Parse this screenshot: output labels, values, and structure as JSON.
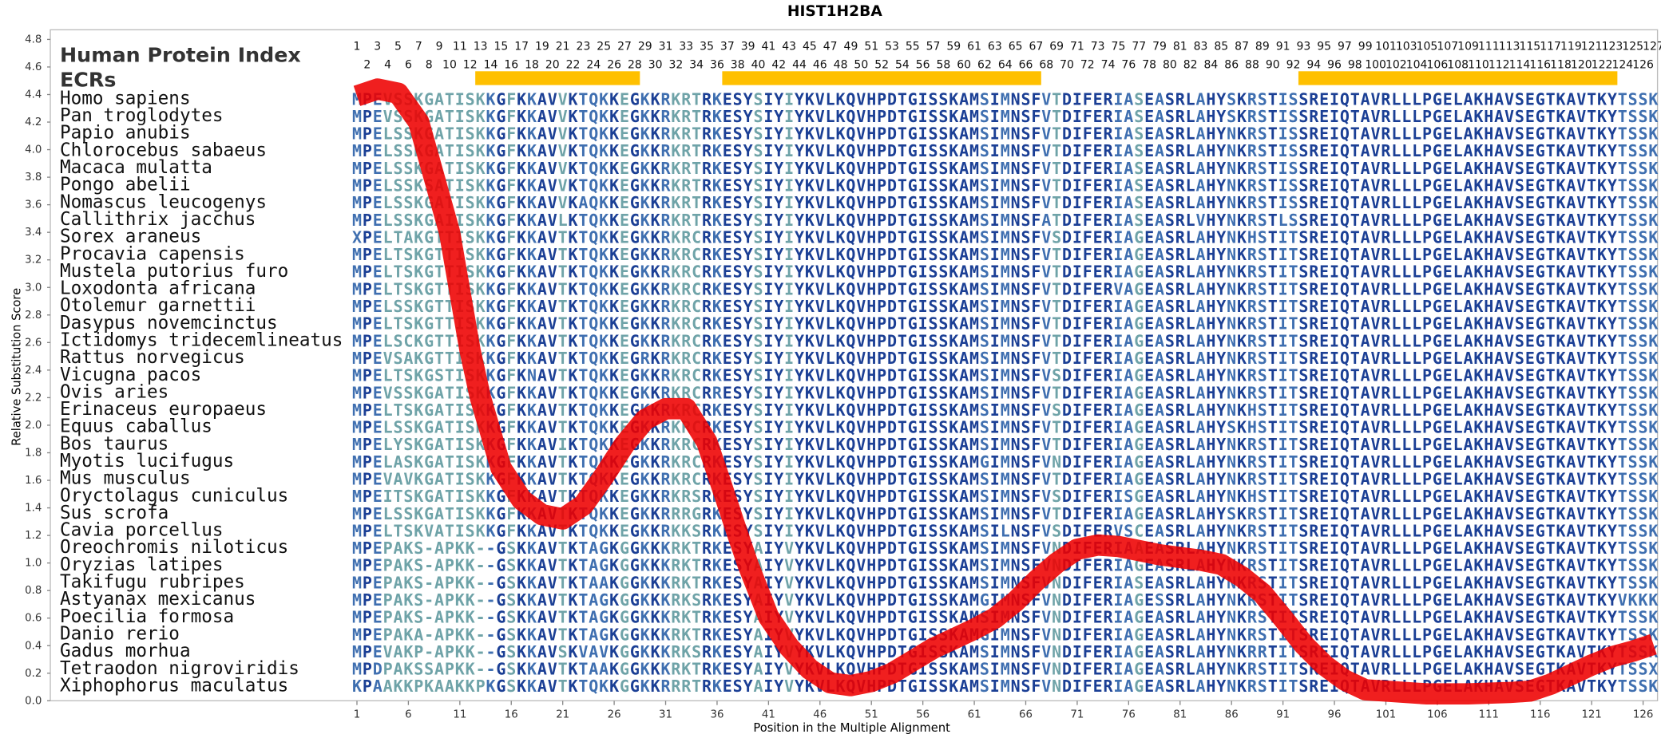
{
  "chart_data": {
    "type": "line",
    "title": "HIST1H2BA",
    "x_label": "Position in the Multiple Alignment",
    "y_label": "Relative Substitution Score",
    "index_label": "Human Protein Index",
    "ecr_label": "ECRs",
    "ecr_color": "#ffc000",
    "ecrs": [
      {
        "start": 13,
        "end": 28
      },
      {
        "start": 37,
        "end": 67
      },
      {
        "start": 93,
        "end": 123
      }
    ],
    "positions": [
      1,
      2,
      3,
      4,
      5,
      6,
      7,
      8,
      9,
      10,
      11,
      12,
      13,
      14,
      15,
      16,
      17,
      18,
      19,
      20,
      21,
      22,
      23,
      24,
      25,
      26,
      27,
      28,
      29,
      30,
      31,
      32,
      33,
      34,
      35,
      36,
      37,
      38,
      39,
      40,
      41,
      42,
      43,
      44,
      45,
      46,
      47,
      48,
      49,
      50,
      51,
      52,
      53,
      54,
      55,
      56,
      57,
      58,
      59,
      60,
      61,
      62,
      63,
      64,
      65,
      66,
      67,
      68,
      69,
      70,
      71,
      72,
      73,
      74,
      75,
      76,
      77,
      78,
      79,
      80,
      81,
      82,
      83,
      84,
      85,
      86,
      87,
      88,
      89,
      90,
      91,
      92,
      93,
      94,
      95,
      96,
      97,
      98,
      99,
      100,
      101,
      102,
      103,
      104,
      105,
      106,
      107,
      108,
      109,
      110,
      111,
      112,
      113,
      114,
      115,
      116,
      117,
      118,
      119,
      120,
      121,
      122,
      123,
      124,
      125,
      126,
      127
    ],
    "rows": [
      {
        "species": "Homo sapiens",
        "sequence": "MPEVSSKGATISKKGFKKAVVKTQKKEGKKRKRTRKESYSIYIYKVLKQVHPDTGISSKAMSIMNSFVTDIFERIASEASRLAHYSKRSTISSREIQTAVRLLLPGELAKHAVSEGTKAVTKYTSSK"
      },
      {
        "species": "Pan troglodytes",
        "sequence": "MPEVSSKGATISKKGFKKAVVKTQKKEGKKRKRTRKESYSIYIYKVLKQVHPDTGISSKAMSIMNSFVTDIFERIASEASRLAHYSKRSTISSREIQTAVRLLLPGELAKHAVSEGTKAVTKYTSSK"
      },
      {
        "species": "Papio anubis",
        "sequence": "MPELSSKGATISKKGFKKAVVKTQKKEGKKRKRTRKESYSIYIYKVLKQVHPDTGISSKAMSIMNSFVTDIFERIASEASRLAHYNKRSTISSREIQTAVRLLLPGELAKHAVSEGTKAVTKYTSSK"
      },
      {
        "species": "Chlorocebus sabaeus",
        "sequence": "MPELSSKGATISKKGFKKAVVKTQKKEGKKRKRTRKESYSIYIYKVLKQVHPDTGISSKAMSIMNSFVTDIFERIASEASRLAHYNKRSTISSREIQTAVRLLLPGELAKHAVSEGTKAVTKYTSSK"
      },
      {
        "species": "Macaca mulatta",
        "sequence": "MPELSSKGATISKKGFKKAVVKTQKKEGKKRKRTRKESYSIYIYKVLKQVHPDTGISSKAMSIMNSFVTDIFERIASEASRLAHYNKRSTISSREIQTAVRLLLPGELAKHAVSEGTKAVTKYTSSK"
      },
      {
        "species": "Pongo abelii",
        "sequence": "MPELSSKSATISKKGFKKAVVKTQKKEGKKRKRTRKESYSIYIYKVLKQVHPDTGISSKAMSIMNSFVTDIFERIASEASRLAHYNKRSTISSREIQTAVRLLLPGELAKHAVSEGTKAVTKYTSSK"
      },
      {
        "species": "Nomascus leucogenys",
        "sequence": "MPELSSKGATISKKGFKKAVVKAQKKEGKKRKRTRKESYSIYIYKVLKQVHPDTGISSKAMSIMNSFVTDIFERIASEASRLAHYNKRSTISSREIQTAVRLLLPGELAKHAVSEGTKAVTKYTSSK"
      },
      {
        "species": "Callithrix jacchus",
        "sequence": "MPELSSKGAIISKKGFKKAVLKTQKKEGKKRKRTRKESYSIYIYKVLKQVHPDTGISSKAMSIMNSFATDIFERIASEASRLVHYNKRSTLSSREIQTAVRLLLPGELAKHAVSEGTKAVTKYTSSK"
      },
      {
        "species": "Sorex araneus",
        "sequence": "XPELTAKGTTISKKGFKKAVTKTQKKEGKKRKRCRKESYSIYIYKVLKQVHPDTGISSKAMSIMNSFVSDIFERIAGEASRLAHYNKHSTITSREIQTAVRLLLPGELAKHAVSEGTKAVTKYTSSK"
      },
      {
        "species": "Procavia capensis",
        "sequence": "MPELTSKGTTISKKGFKKAVTKTQKKEGKKRKRCRKESYSIYIYKVLKQVHPDTGISSKAMSIMNSFVTDIFERIAGEASRLAHYNKRSTITSREIQTAVRLLLPGELAKHAVSEGTKAVTKYTSSK"
      },
      {
        "species": "Mustela putorius furo",
        "sequence": "MPELTSKGTTISKKGFKKAVTKTQKKEGKKRKRCRKESYSIYIYKVLKQVHPDTGISSKAMSIMNSFVTDIFERIAGEASRLAHYNKRSTITSREIQTAVRLLLPGELAKHAVSEGTKAVTKYTSSK"
      },
      {
        "species": "Loxodonta africana",
        "sequence": "MPELTSKGTTISKKGFKKAVTKTQKKEGKKRKRCRKESYSIYIYKVLKQVHPDTGISSKAMSIMNSFVTDIFERVAGEASRLAHYNKRSTITSREIQTAVRLLLPGELAKHAVSEGTKAVTKYTSSK"
      },
      {
        "species": "Otolemur garnettii",
        "sequence": "MPELSSKGTTISKKGFKKAVTKTQKKEGKKRKRCRKESYSIYIYKVLKQVHPDTGISSKAMSIMNSFVTDIFERIAGEASRLAHYNKRSTITSREIQTAVRLLLPGELAKHAVSEGTKAVTKYTSSK"
      },
      {
        "species": "Dasypus novemcinctus",
        "sequence": "MPELTSKGTTISKKGFKKAVTKTQKKEGKKRKRCRKESYSIYIYKVLKQVHPDTGISSKAMSIMNSFVTDIFERIAGEASRLAHYNKRSTITSREIQTAVRLLLPGELAKHAVSEGTKAVTKYTSSK"
      },
      {
        "species": "Ictidomys tridecemlineatus",
        "sequence": "MPELSCKGTTISKKGFKKAVTKTQKKEGKKRKRCRKESYSIYIYKVLKQVHPDTGISSKAMSIMNSFVTDIFERIAGEASRLAHYNKRSTITSREIQTAVRLLLPGELAKHAVSEGTKAVTKYTSSK"
      },
      {
        "species": "Rattus norvegicus",
        "sequence": "MPEVSAKGTTISKKGFKKAVTKTQKKEGRKRKRCRKESYSIYIYKVLKQVHPDTGISSKAMSIMNSFVTDIFERIAGEASRLAHYNKRSTITSREIQTAVRLLLPGELAKHAVSEGTKAVTKYTSSK"
      },
      {
        "species": "Vicugna pacos",
        "sequence": "MPELTSKGSTISKKGFKNAVTKTQKKEGKKRKRCRKESYSIYIYKVLKQVHPDTGISSKAMSIMNSFVSDIFERIAGEASRLAHYNKRSTITSREIQTAVRLLLPGELAKHAVSEGTKAVTKYTSSK"
      },
      {
        "species": "Ovis aries",
        "sequence": "MPEVSSKGATISKKGFKKAVTKTQKKEGKKRKRCRRESYSIYIYKVLKQVHPDTGISSKAMSIMNSFVTDIFERIAGEASRLAHYNKRSTITSREIQTAVRLLLPGELAKHAVSEGTKAVTKYTSSK"
      },
      {
        "species": "Erinaceus europaeus",
        "sequence": "MPELTSKGATISKKGFKKAVTKTQKKEGKKRKRCRKESYSIYIYKVLKQVHPDTGISSKAMSIMNSFVSDIFERIAGEASRLAHYNKHSTITSREIQTAVRLLLPGELAKHAVSEGTKAVTKYTSSK"
      },
      {
        "species": "Equus caballus",
        "sequence": "MPELSSKGATISKKGFKKAVTKTQKKEGKKRKRCRKESYSIYIYKVLKQVHPDTGISSKAMSIMNSFVTDIFERIAGEASRLAHYSKHSTITSREIQTAVRLLLPGELAKHAVSEGTKAVTKYTSSK"
      },
      {
        "species": "Bos taurus",
        "sequence": "MPELYSKGATISKKGFKKAVIKTQKKEGKKRKRCRKESYSIYIYKVLKQVHPDTGISSKAMSIMNSFVTDIFERIAGEASRLAHYNKRSTITSREIQTAVRLLLPGELAKHAVSEGTKAVTKYTSSK"
      },
      {
        "species": "Myotis lucifugus",
        "sequence": "MPELASKGATISKKGFKKAVTKTQKKEGKKRKRCRKESYSIYIYKVLKQVHPDTGISSKAMGIMNSFVNDIFERIAGEASRLAHYNKRSTITSREIQTAVRLLLPGELAKHAVSEGTKAVTKYTSSK"
      },
      {
        "species": "Mus musculus",
        "sequence": "MPEVAVKGATISKKGFKKAVTKTQKKEGKKRKRCRKESYSIYIYKVLKQVHPDTGISSKAMSIMNSFVTDIFERIAGEASRLAHYNKRSTITSREIQTAVRLLLPGELAKHAVSEGTKAVTKYTSSK"
      },
      {
        "species": "Oryctolagus cuniculus",
        "sequence": "MPEITSKGATISKKGFKKAVTKTQKKEGKKRKRSRKESYSIYIYKVLKQVHPDTGISSKAMSIMNSFVSDIFERISGEASRLAHYNKHSTITSREIQTAVRLLLPGELAKHAVSEGTKAVTKYTSSK"
      },
      {
        "species": "Sus scrofa",
        "sequence": "MPELSSKGATISKKGFKKAVTKTQKKEGKKRRRGRKESYSIYIYKVLKQVHPDTGISSKAMSIMNSFVTDIFERIAGEASRLAHYSKRSTITSREIQTAVRLLLPGELAKHAVSEGTKAVTKYTSSK"
      },
      {
        "species": "Cavia porcellus",
        "sequence": "MPELTSKVATISKKGFKKAVTKTQKKEGKKRKKSRKESYSIYIYKVLKQVHPDTGISSKAMSILNSFVSDIFERVSCEASRLAHYNKRSTITSREIQTAVRLLLPGELAKHAVSEGTKAVTKYTSSK"
      },
      {
        "species": "Oreochromis niloticus",
        "sequence": "MPEPAKS-APKK--GSKKAVTKTAGKGGKKKRKTRKESYAIYVYKVLKQVHPDTGISSKAMSIMNSFVNDIFERIAAEASRLAHYNKRSTITSREIQTAVRLLLPGELAKHAVSEGTKAVTKYTSSK"
      },
      {
        "species": "Oryzias latipes",
        "sequence": "MPEPAKS-APKK--GSKKAVTKTAGKGGKKKRKTRKESYAIYVYKVLKQVHPDTGISSKAMSIMNSFVNDIFERIAGEASRLAHYNKRSTITSREIQTAVRLLLPGELAKHAVSEGTKAVTKYTSSK"
      },
      {
        "species": "Takifugu rubripes",
        "sequence": "MPEPAKS-APKK--GSKKAVTKTAAKGGKKKRKTRKESYAIYVYKVLKQVHPDTGISSKAMSIMNSFVNDIFERIASEASRLAHYNKRSTITSREIQTAVRLLLPGELAKHAVSEGTKAVTKYTSSK"
      },
      {
        "species": "Astyanax mexicanus",
        "sequence": "MPEPAKS-APKK--GSKKAVTKTAGKGGKKKRKSRKESYAIYVYKVLKQVHPDTGISSKAMGIMNSFVNDIFERIAGESSRLAHYNKRSTITSREIQTAVRLLLPGELAKHAVSEGTKAVTKYVKKK"
      },
      {
        "species": "Poecilia formosa",
        "sequence": "MPEPAKS-APKK--GSKKAVTKTAGKGGKKKRKTRKESYAIYVYKVLKQVHPDTGISSKAMSIMNSFVNDIFERIAGEASRLAHYNKRSTITSREIQTAVRLLLPGELAKHAVSEGTKAVTKYTSSK"
      },
      {
        "species": "Danio rerio",
        "sequence": "MPEPAKA-APKK--GSKKAVTKTAGKGGKKKRKTRKESYAIYVYKVLKQVHPDTGISSKAMGIMNSFVNDIFERIAGEASRLAHYNKRSTITSREIQTAVRLLLPGELAKHAVSEGTKAVTKYTSSK"
      },
      {
        "species": "Gadus morhua",
        "sequence": "MPEVAKP-APKK--GSKKAVSKVAVKGGKKKRKSRKESYAIYVYKVLKQVHPDTGISSKAMSIMNSFVNDIFERIAGEASRLAHYNKRRTITSREIQTAVRLLLPGELAKHAVSEGTKAVTKYTSSK"
      },
      {
        "species": "Tetraodon nigroviridis",
        "sequence": "MPDPAKSSAPKK--GSKKAVTKTAAKGGKKKRKTRKESYAIYVYKVLKQVHPDTGISSKAMSIMNSFVNDIFERIAGEASRLAHYNKRSTITSREIQTAVRLLLPGELAKHAVSEGTKAVTKYTSSX"
      },
      {
        "species": "Xiphophorus maculatus",
        "sequence": "KPAAKKPKAAKKPKGSKKAVTKTQKKGGKKRRRTRKESYAIYVYKVLKQVHPDTGISSKAMSIMNSFVNDIFERIAGEASRLAHYNKRSTITSREIQTAVRLLLPGELAKHAVSEGTKAVTKYTSSK"
      }
    ],
    "x": [
      1,
      3,
      5,
      7,
      10,
      12,
      13,
      15,
      17,
      19,
      21,
      23,
      25,
      27,
      29,
      31,
      33,
      35,
      36,
      38,
      39,
      41,
      43,
      45,
      47,
      49,
      51,
      53,
      55,
      57,
      59,
      61,
      63,
      65,
      67,
      69,
      71,
      73,
      75,
      77,
      79,
      81,
      83,
      85,
      87,
      89,
      91,
      93,
      95,
      97,
      99,
      101,
      105,
      109,
      113,
      115,
      117,
      119,
      121,
      123,
      125,
      127
    ],
    "values": [
      4.39,
      4.44,
      4.41,
      4.2,
      3.4,
      2.54,
      2.2,
      1.69,
      1.46,
      1.35,
      1.32,
      1.42,
      1.63,
      1.86,
      2.04,
      2.12,
      2.12,
      1.88,
      1.66,
      1.21,
      0.99,
      0.61,
      0.39,
      0.23,
      0.13,
      0.11,
      0.14,
      0.2,
      0.29,
      0.38,
      0.45,
      0.52,
      0.6,
      0.72,
      0.87,
      1.0,
      1.1,
      1.13,
      1.12,
      1.09,
      1.06,
      1.04,
      1.02,
      0.99,
      0.9,
      0.78,
      0.6,
      0.41,
      0.26,
      0.15,
      0.08,
      0.07,
      0.05,
      0.05,
      0.06,
      0.07,
      0.12,
      0.19,
      0.26,
      0.32,
      0.36,
      0.41
    ],
    "color": "#ee0000",
    "xlim": [
      -28.8,
      127.4
    ],
    "ylim": [
      0,
      4.87
    ],
    "xticks": [
      1,
      6,
      11,
      16,
      21,
      26,
      31,
      36,
      41,
      46,
      51,
      56,
      61,
      66,
      71,
      76,
      81,
      86,
      91,
      96,
      101,
      106,
      111,
      116,
      121,
      126
    ],
    "yticks": [
      {
        "value": 0,
        "label": "0.0"
      },
      0.2,
      0.4,
      0.6,
      0.8,
      {
        "value": 1,
        "label": "1.0"
      },
      1.2,
      1.4,
      1.6,
      1.8,
      {
        "value": 2,
        "label": "2.0"
      },
      2.2,
      2.4,
      2.6,
      2.8,
      {
        "value": 3,
        "label": "3.0"
      },
      3.2,
      3.4,
      3.6,
      3.8,
      {
        "value": 4,
        "label": "4.0"
      },
      4.2,
      4.4,
      4.6,
      4.8
    ],
    "grid": false
  }
}
